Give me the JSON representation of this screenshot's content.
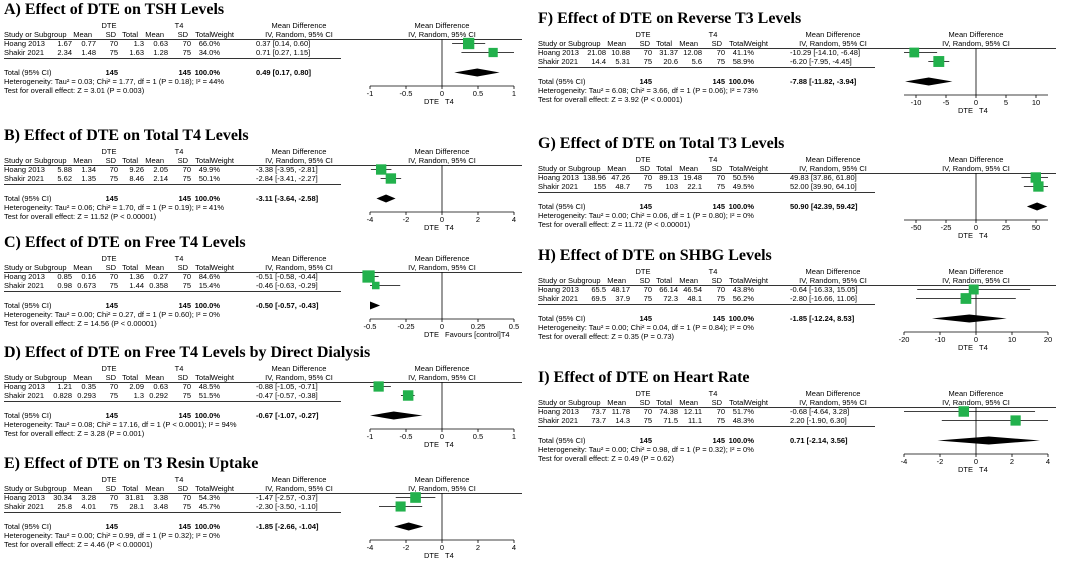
{
  "columns": {
    "group_exp": "DTE",
    "group_ctl": "T4",
    "study": "Study or Subgroup",
    "mean": "Mean",
    "sd": "SD",
    "total": "Total",
    "weight": "Weight",
    "md_title": "Mean Difference",
    "md_sub": "IV, Random, 95% CI",
    "total_row": "Total (95% CI)"
  },
  "chart_data": [
    {
      "type": "forest",
      "title": "A) Effect of DTE on TSH Levels",
      "studies": [
        {
          "name": "Hoang 2013",
          "m1": "1.67",
          "sd1": "0.77",
          "n1": "70",
          "m2": "1.3",
          "sd2": "0.63",
          "n2": "70",
          "weight": "66.0%",
          "ci": "0.37 [0.14, 0.60]",
          "est": 0.37,
          "lo": 0.14,
          "hi": 0.6,
          "w": 66.0
        },
        {
          "name": "Shakir 2021",
          "m1": "2.34",
          "sd1": "1.48",
          "n1": "75",
          "m2": "1.63",
          "sd2": "1.28",
          "n2": "75",
          "weight": "34.0%",
          "ci": "0.71 [0.27, 1.15]",
          "est": 0.71,
          "lo": 0.27,
          "hi": 1.15,
          "w": 34.0
        }
      ],
      "total": {
        "n1": "145",
        "n2": "145",
        "weight": "100.0%",
        "ci": "0.49 [0.17, 0.80]",
        "est": 0.49,
        "lo": 0.17,
        "hi": 0.8
      },
      "heterogeneity": "Heterogeneity: Tau² = 0.03; Chi² = 1.77, df = 1 (P = 0.18); I² = 44%",
      "overall": "Test for overall effect: Z = 3.01 (P = 0.003)",
      "xlim": [
        -1,
        1
      ],
      "ticks": [
        "-1",
        "-0.5",
        "0",
        "0.5",
        "1"
      ],
      "tick_values": [
        -1,
        -0.5,
        0,
        0.5,
        1
      ],
      "foot_left": "DTE",
      "foot_right": "T4"
    },
    {
      "type": "forest",
      "title": "B) Effect of DTE on Total T4 Levels",
      "studies": [
        {
          "name": "Hoang 2013",
          "m1": "5.88",
          "sd1": "1.34",
          "n1": "70",
          "m2": "9.26",
          "sd2": "2.05",
          "n2": "70",
          "weight": "49.9%",
          "ci": "-3.38 [-3.95, -2.81]",
          "est": -3.38,
          "lo": -3.95,
          "hi": -2.81,
          "w": 49.9
        },
        {
          "name": "Shakir 2021",
          "m1": "5.62",
          "sd1": "1.35",
          "n1": "75",
          "m2": "8.46",
          "sd2": "2.14",
          "n2": "75",
          "weight": "50.1%",
          "ci": "-2.84 [-3.41, -2.27]",
          "est": -2.84,
          "lo": -3.41,
          "hi": -2.27,
          "w": 50.1
        }
      ],
      "total": {
        "n1": "145",
        "n2": "145",
        "weight": "100.0%",
        "ci": "-3.11 [-3.64, -2.58]",
        "est": -3.11,
        "lo": -3.64,
        "hi": -2.58
      },
      "heterogeneity": "Heterogeneity: Tau² = 0.06; Chi² = 1.70, df = 1 (P = 0.19); I² = 41%",
      "overall": "Test for overall effect: Z = 11.52 (P < 0.00001)",
      "xlim": [
        -4,
        4
      ],
      "ticks": [
        "-4",
        "-2",
        "0",
        "2",
        "4"
      ],
      "tick_values": [
        -4,
        -2,
        0,
        2,
        4
      ],
      "foot_left": "DTE",
      "foot_right": "T4"
    },
    {
      "type": "forest",
      "title": "C) Effect of DTE on Free T4 Levels",
      "studies": [
        {
          "name": "Hoang 2013",
          "m1": "0.85",
          "sd1": "0.16",
          "n1": "70",
          "m2": "1.36",
          "sd2": "0.27",
          "n2": "70",
          "weight": "84.6%",
          "ci": "-0.51 [-0.58, -0.44]",
          "est": -0.51,
          "lo": -0.58,
          "hi": -0.44,
          "w": 84.6
        },
        {
          "name": "Shakir 2021",
          "m1": "0.98",
          "sd1": "0.673",
          "n1": "75",
          "m2": "1.44",
          "sd2": "0.358",
          "n2": "75",
          "weight": "15.4%",
          "ci": "-0.46 [-0.63, -0.29]",
          "est": -0.46,
          "lo": -0.63,
          "hi": -0.29,
          "w": 15.4
        }
      ],
      "total": {
        "n1": "145",
        "n2": "145",
        "weight": "100.0%",
        "ci": "-0.50 [-0.57, -0.43]",
        "est": -0.5,
        "lo": -0.57,
        "hi": -0.43
      },
      "heterogeneity": "Heterogeneity: Tau² = 0.00; Chi² = 0.27, df = 1 (P = 0.60); I² = 0%",
      "overall": "Test for overall effect: Z = 14.56 (P < 0.00001)",
      "xlim": [
        -0.5,
        0.5
      ],
      "ticks": [
        "-0.5",
        "-0.25",
        "0",
        "0.25",
        "0.5"
      ],
      "tick_values": [
        -0.5,
        -0.25,
        0,
        0.25,
        0.5
      ],
      "foot_left": "DTE",
      "foot_right": "Favours [control]T4"
    },
    {
      "type": "forest",
      "title": "D) Effect of DTE on Free T4 Levels by Direct Dialysis",
      "studies": [
        {
          "name": "Hoang 2013",
          "m1": "1.21",
          "sd1": "0.35",
          "n1": "70",
          "m2": "2.09",
          "sd2": "0.63",
          "n2": "70",
          "weight": "48.5%",
          "ci": "-0.88 [-1.05, -0.71]",
          "est": -0.88,
          "lo": -1.05,
          "hi": -0.71,
          "w": 48.5
        },
        {
          "name": "Shakir 2021",
          "m1": "0.828",
          "sd1": "0.293",
          "n1": "75",
          "m2": "1.3",
          "sd2": "0.292",
          "n2": "75",
          "weight": "51.5%",
          "ci": "-0.47 [-0.57, -0.38]",
          "est": -0.47,
          "lo": -0.57,
          "hi": -0.38,
          "w": 51.5
        }
      ],
      "total": {
        "n1": "145",
        "n2": "145",
        "weight": "100.0%",
        "ci": "-0.67 [-1.07, -0.27]",
        "est": -0.67,
        "lo": -1.07,
        "hi": -0.27
      },
      "heterogeneity": "Heterogeneity: Tau² = 0.08; Chi² = 17.16, df = 1 (P < 0.0001); I² = 94%",
      "overall": "Test for overall effect: Z = 3.28 (P = 0.001)",
      "xlim": [
        -1,
        1
      ],
      "ticks": [
        "-1",
        "-0.5",
        "0",
        "0.5",
        "1"
      ],
      "tick_values": [
        -1,
        -0.5,
        0,
        0.5,
        1
      ],
      "foot_left": "DTE",
      "foot_right": "T4"
    },
    {
      "type": "forest",
      "title": "E) Effect of DTE on T3 Resin Uptake",
      "studies": [
        {
          "name": "Hoang 2013",
          "m1": "30.34",
          "sd1": "3.28",
          "n1": "70",
          "m2": "31.81",
          "sd2": "3.38",
          "n2": "70",
          "weight": "54.3%",
          "ci": "-1.47 [-2.57, -0.37]",
          "est": -1.47,
          "lo": -2.57,
          "hi": -0.37,
          "w": 54.3
        },
        {
          "name": "Shakir 2021",
          "m1": "25.8",
          "sd1": "4.01",
          "n1": "75",
          "m2": "28.1",
          "sd2": "3.48",
          "n2": "75",
          "weight": "45.7%",
          "ci": "-2.30 [-3.50, -1.10]",
          "est": -2.3,
          "lo": -3.5,
          "hi": -1.1,
          "w": 45.7
        }
      ],
      "total": {
        "n1": "145",
        "n2": "145",
        "weight": "100.0%",
        "ci": "-1.85 [-2.66, -1.04]",
        "est": -1.85,
        "lo": -2.66,
        "hi": -1.04
      },
      "heterogeneity": "Heterogeneity: Tau² = 0.00; Chi² = 0.99, df = 1 (P = 0.32); I² = 0%",
      "overall": "Test for overall effect: Z = 4.46 (P < 0.00001)",
      "xlim": [
        -4,
        4
      ],
      "ticks": [
        "-4",
        "-2",
        "0",
        "2",
        "4"
      ],
      "tick_values": [
        -4,
        -2,
        0,
        2,
        4
      ],
      "foot_left": "DTE",
      "foot_right": "T4"
    },
    {
      "type": "forest",
      "title": "F) Effect of DTE on Reverse T3 Levels",
      "studies": [
        {
          "name": "Hoang 2013",
          "m1": "21.08",
          "sd1": "10.88",
          "n1": "70",
          "m2": "31.37",
          "sd2": "12.08",
          "n2": "70",
          "weight": "41.1%",
          "ci": "-10.29 [-14.10, -6.48]",
          "est": -10.29,
          "lo": -14.1,
          "hi": -6.48,
          "w": 41.1
        },
        {
          "name": "Shakir 2021",
          "m1": "14.4",
          "sd1": "5.31",
          "n1": "75",
          "m2": "20.6",
          "sd2": "5.6",
          "n2": "75",
          "weight": "58.9%",
          "ci": "-6.20 [-7.95, -4.45]",
          "est": -6.2,
          "lo": -7.95,
          "hi": -4.45,
          "w": 58.9
        }
      ],
      "total": {
        "n1": "145",
        "n2": "145",
        "weight": "100.0%",
        "ci": "-7.88 [-11.82, -3.94]",
        "est": -7.88,
        "lo": -11.82,
        "hi": -3.94
      },
      "heterogeneity": "Heterogeneity: Tau² = 6.08; Chi² = 3.66, df = 1 (P = 0.06); I² = 73%",
      "overall": "Test for overall effect: Z = 3.92 (P < 0.0001)",
      "xlim": [
        -12,
        12
      ],
      "ticks": [
        "-10",
        "-5",
        "0",
        "5",
        "10"
      ],
      "tick_values": [
        -10,
        -5,
        0,
        5,
        10
      ],
      "foot_left": "DTE",
      "foot_right": "T4"
    },
    {
      "type": "forest",
      "title": "G) Effect of DTE on Total T3 Levels",
      "studies": [
        {
          "name": "Hoang 2013",
          "m1": "138.96",
          "sd1": "47.26",
          "n1": "70",
          "m2": "89.13",
          "sd2": "19.48",
          "n2": "70",
          "weight": "50.5%",
          "ci": "49.83 [37.86, 61.80]",
          "est": 49.83,
          "lo": 37.86,
          "hi": 61.8,
          "w": 50.5
        },
        {
          "name": "Shakir 2021",
          "m1": "155",
          "sd1": "48.7",
          "n1": "75",
          "m2": "103",
          "sd2": "22.1",
          "n2": "75",
          "weight": "49.5%",
          "ci": "52.00 [39.90, 64.10]",
          "est": 52.0,
          "lo": 39.9,
          "hi": 64.1,
          "w": 49.5
        }
      ],
      "total": {
        "n1": "145",
        "n2": "145",
        "weight": "100.0%",
        "ci": "50.90 [42.39, 59.42]",
        "est": 50.9,
        "lo": 42.39,
        "hi": 59.42
      },
      "heterogeneity": "Heterogeneity: Tau² = 0.00; Chi² = 0.06, df = 1 (P = 0.80); I² = 0%",
      "overall": "Test for overall effect: Z = 11.72 (P < 0.00001)",
      "xlim": [
        -60,
        60
      ],
      "ticks": [
        "-50",
        "-25",
        "0",
        "25",
        "50"
      ],
      "tick_values": [
        -50,
        -25,
        0,
        25,
        50
      ],
      "foot_left": "DTE",
      "foot_right": "T4"
    },
    {
      "type": "forest",
      "title": "H) Effect of DTE on SHBG Levels",
      "studies": [
        {
          "name": "Hoang 2013",
          "m1": "65.5",
          "sd1": "48.17",
          "n1": "70",
          "m2": "66.14",
          "sd2": "46.54",
          "n2": "70",
          "weight": "43.8%",
          "ci": "-0.64 [-16.33, 15.05]",
          "est": -0.64,
          "lo": -16.33,
          "hi": 15.05,
          "w": 43.8
        },
        {
          "name": "Shakir 2021",
          "m1": "69.5",
          "sd1": "37.9",
          "n1": "75",
          "m2": "72.3",
          "sd2": "48.1",
          "n2": "75",
          "weight": "56.2%",
          "ci": "-2.80 [-16.66, 11.06]",
          "est": -2.8,
          "lo": -16.66,
          "hi": 11.06,
          "w": 56.2
        }
      ],
      "total": {
        "n1": "145",
        "n2": "145",
        "weight": "100.0%",
        "ci": "-1.85 [-12.24, 8.53]",
        "est": -1.85,
        "lo": -12.24,
        "hi": 8.53
      },
      "heterogeneity": "Heterogeneity: Tau² = 0.00; Chi² = 0.04, df = 1 (P = 0.84); I² = 0%",
      "overall": "Test for overall effect: Z = 0.35 (P = 0.73)",
      "xlim": [
        -20,
        20
      ],
      "ticks": [
        "-20",
        "-10",
        "0",
        "10",
        "20"
      ],
      "tick_values": [
        -20,
        -10,
        0,
        10,
        20
      ],
      "foot_left": "DTE",
      "foot_right": "T4"
    },
    {
      "type": "forest",
      "title": "I) Effect of DTE on Heart Rate",
      "studies": [
        {
          "name": "Hoang 2013",
          "m1": "73.7",
          "sd1": "11.78",
          "n1": "70",
          "m2": "74.38",
          "sd2": "12.11",
          "n2": "70",
          "weight": "51.7%",
          "ci": "-0.68 [-4.64, 3.28]",
          "est": -0.68,
          "lo": -4.64,
          "hi": 3.28,
          "w": 51.7
        },
        {
          "name": "Shakir 2021",
          "m1": "73.7",
          "sd1": "14.3",
          "n1": "75",
          "m2": "71.5",
          "sd2": "11.1",
          "n2": "75",
          "weight": "48.3%",
          "ci": "2.20 [-1.90, 6.30]",
          "est": 2.2,
          "lo": -1.9,
          "hi": 6.3,
          "w": 48.3
        }
      ],
      "total": {
        "n1": "145",
        "n2": "145",
        "weight": "100.0%",
        "ci": "0.71 [-2.14, 3.56]",
        "est": 0.71,
        "lo": -2.14,
        "hi": 3.56
      },
      "heterogeneity": "Heterogeneity: Tau² = 0.00; Chi² = 0.98, df = 1 (P = 0.32); I² = 0%",
      "overall": "Test for overall effect: Z = 0.49 (P = 0.62)",
      "xlim": [
        -4,
        4
      ],
      "ticks": [
        "-4",
        "-2",
        "0",
        "2",
        "4"
      ],
      "tick_values": [
        -4,
        -2,
        0,
        2,
        4
      ],
      "foot_left": "DTE",
      "foot_right": "T4"
    }
  ]
}
